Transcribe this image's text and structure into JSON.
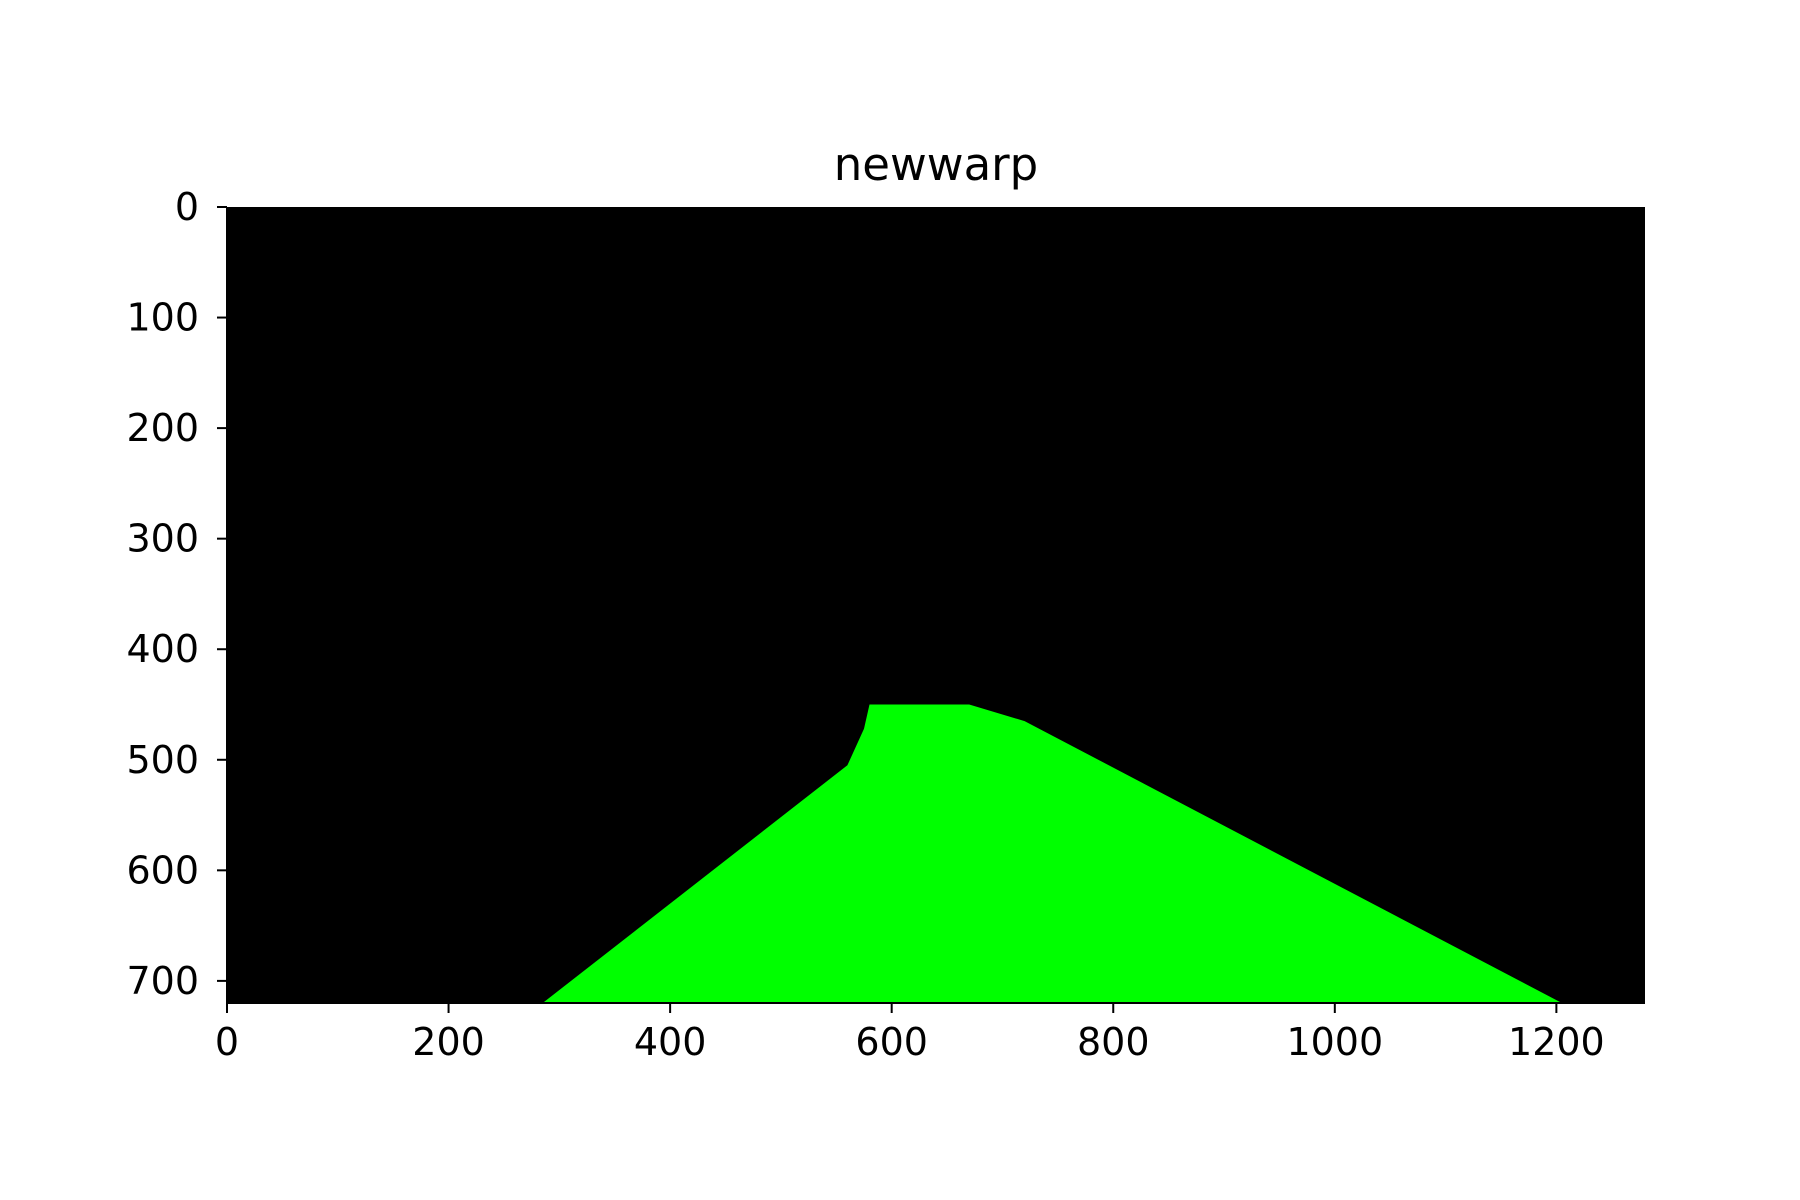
{
  "chart_data": {
    "type": "image",
    "title": "newwarp",
    "xlabel": "",
    "ylabel": "",
    "image_width": 1280,
    "image_height": 720,
    "xlim": [
      0,
      1280
    ],
    "ylim": [
      720,
      0
    ],
    "y_inverted": true,
    "x_ticks": [
      0,
      200,
      400,
      600,
      800,
      1000,
      1200
    ],
    "y_ticks": [
      0,
      100,
      200,
      300,
      400,
      500,
      600,
      700
    ],
    "background_color": "#000000",
    "fill_color": "#00ff00",
    "grid": false,
    "filled_region": [
      [
        285,
        720
      ],
      [
        560,
        505
      ],
      [
        575,
        472
      ],
      [
        580,
        450
      ],
      [
        670,
        450
      ],
      [
        720,
        465
      ],
      [
        1205,
        720
      ]
    ]
  }
}
